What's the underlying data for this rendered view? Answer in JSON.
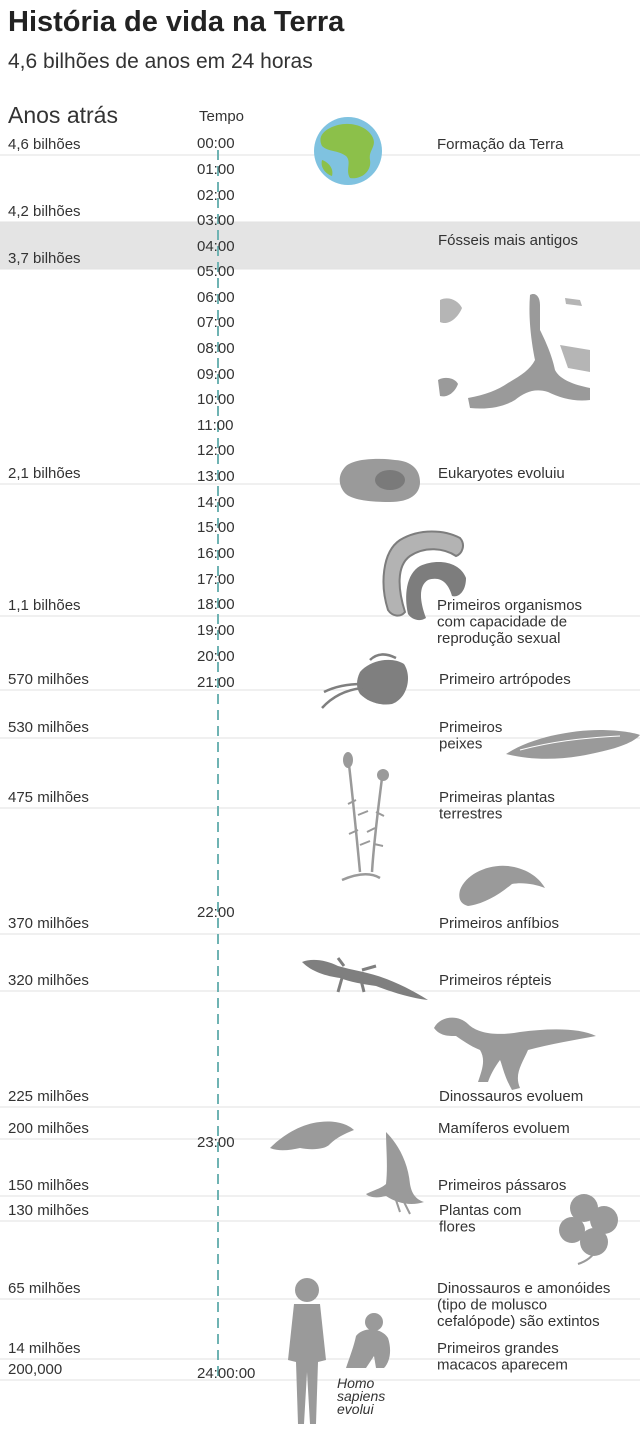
{
  "header": {
    "title": "História de vida na Terra",
    "subtitle": "4,6 bilhões de anos em 24 horas",
    "years_label": "Anos atrás",
    "time_label": "Tempo"
  },
  "chart_data": {
    "type": "timeline",
    "title": "História de vida na Terra",
    "subtitle": "4,6 bilhões de anos em 24 horas",
    "column_labels": [
      "Anos atrás",
      "Tempo"
    ],
    "clock_ticks": [
      "00:00",
      "01:00",
      "02:00",
      "03:00",
      "04:00",
      "05:00",
      "06:00",
      "07:00",
      "08:00",
      "09:00",
      "10:00",
      "11:00",
      "12:00",
      "13:00",
      "14:00",
      "15:00",
      "16:00",
      "17:00",
      "18:00",
      "19:00",
      "20:00",
      "21:00",
      "22:00",
      "23:00",
      "24:00:00"
    ],
    "highlight": {
      "from": "4,2 bilhões",
      "to": "3,7 bilhões"
    },
    "years": [
      "4,6 bilhões",
      "4,2 bilhões",
      "3,7 bilhões",
      "2,1 bilhões",
      "1,1 bilhões",
      "570 milhões",
      "530 milhões",
      "475 milhões",
      "370 milhões",
      "320 milhões",
      "225 milhões",
      "200 milhões",
      "150 milhões",
      "130 milhões",
      "65 milhões",
      "14 milhões",
      "200,000"
    ],
    "events": [
      {
        "years_ago": "4,6 bilhões",
        "lines": [
          "Formação da Terra"
        ],
        "icon": "earth-icon"
      },
      {
        "years_ago": "3,7 bilhões",
        "lines": [
          "Fósseis mais antigos"
        ],
        "icon": "fossil-icon"
      },
      {
        "years_ago": "2,1 bilhões",
        "lines": [
          "Eukaryotes evoluiu"
        ],
        "icon": "eukaryote-cell-icon"
      },
      {
        "years_ago": "1,1 bilhões",
        "lines": [
          "Primeiros organismos",
          "com capacidade de",
          "reprodução sexual"
        ],
        "icon": "algae-filament-icon"
      },
      {
        "years_ago": "570 milhões",
        "lines": [
          "Primeiro artrópodes"
        ],
        "icon": "trilobite-icon"
      },
      {
        "years_ago": "530 milhões",
        "lines": [
          "Primeiros",
          "peixes"
        ],
        "icon": "fish-icon"
      },
      {
        "years_ago": "475 milhões",
        "lines": [
          "Primeiras plantas",
          "terrestres"
        ],
        "icon": "moss-plant-icon"
      },
      {
        "years_ago": "370 milhões",
        "lines": [
          "Primeiros anfíbios"
        ],
        "icon": "amphibian-icon"
      },
      {
        "years_ago": "320 milhões",
        "lines": [
          "Primeiros répteis"
        ],
        "icon": "lizard-icon"
      },
      {
        "years_ago": "225 milhões",
        "lines": [
          "Dinossauros evoluem"
        ],
        "icon": "dinosaur-icon"
      },
      {
        "years_ago": "200 milhões",
        "lines": [
          "Mamíferos evoluem"
        ],
        "icon": "mammal-icon"
      },
      {
        "years_ago": "150 milhões",
        "lines": [
          "Primeiros pássaros"
        ],
        "icon": "bird-icon"
      },
      {
        "years_ago": "130 milhões",
        "lines": [
          "Plantas com",
          "flores"
        ],
        "icon": "flower-icon"
      },
      {
        "years_ago": "65 milhões",
        "lines": [
          "Dinossauros e amonóides",
          "(tipo de molusco",
          "cefalópode) são extintos"
        ],
        "icon": "human-icon"
      },
      {
        "years_ago": "14 milhões",
        "lines": [
          "Primeiros grandes",
          "macacos aparecem"
        ],
        "icon": "ape-icon"
      },
      {
        "years_ago": "200,000",
        "lines": [
          "Homo",
          "sapiens",
          "evolui"
        ],
        "icon": "human-icon"
      }
    ]
  }
}
